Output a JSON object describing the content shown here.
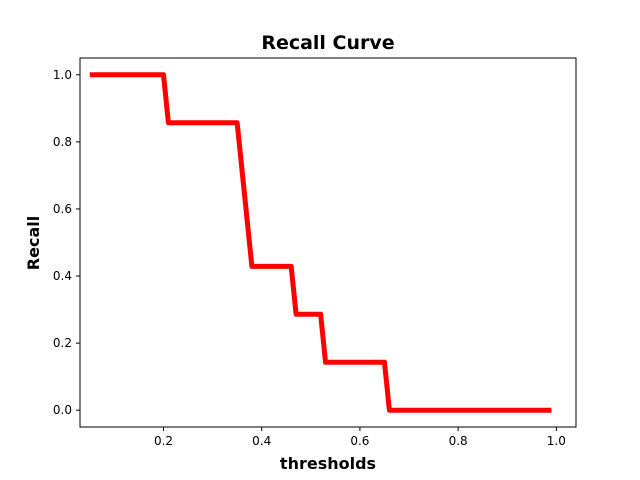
{
  "chart_data": {
    "type": "line",
    "title": "Recall Curve",
    "xlabel": "thresholds",
    "ylabel": "Recall",
    "xlim": [
      0.03,
      1.04
    ],
    "ylim": [
      -0.05,
      1.05
    ],
    "xticks": [
      0.2,
      0.4,
      0.6,
      0.8,
      1.0
    ],
    "xtick_labels": [
      "0.2",
      "0.4",
      "0.6",
      "0.8",
      "1.0"
    ],
    "yticks": [
      0.0,
      0.2,
      0.4,
      0.6,
      0.8,
      1.0
    ],
    "ytick_labels": [
      "0.0",
      "0.2",
      "0.4",
      "0.6",
      "0.8",
      "1.0"
    ],
    "grid": false,
    "series": [
      {
        "color": "#ff0000",
        "x": [
          0.05,
          0.2,
          0.21,
          0.35,
          0.38,
          0.46,
          0.47,
          0.52,
          0.53,
          0.65,
          0.66,
          0.99
        ],
        "y": [
          1.0,
          1.0,
          0.857,
          0.857,
          0.429,
          0.429,
          0.286,
          0.286,
          0.143,
          0.143,
          0.0,
          0.0
        ]
      }
    ]
  }
}
